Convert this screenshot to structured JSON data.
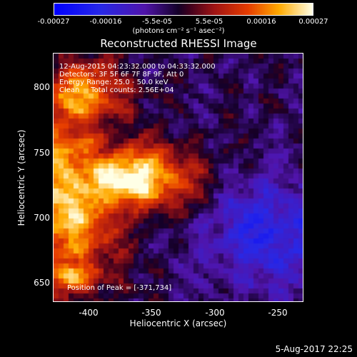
{
  "colorbar": {
    "ticks": [
      "-0.00027",
      "-0.00016",
      "-5.5e-05",
      "5.5e-05",
      "0.00016",
      "0.00027"
    ],
    "tick_values": [
      -0.00027,
      -0.00016,
      -5.5e-05,
      5.5e-05,
      0.00016,
      0.00027
    ],
    "unit_label": "(photons cm⁻² s⁻¹ asec⁻²)"
  },
  "chart_data": {
    "type": "heatmap",
    "title": "Reconstructed RHESSI Image",
    "xlabel": "Heliocentric X (arcsec)",
    "ylabel": "Heliocentric Y (arcsec)",
    "xlim": [
      -428,
      -232
    ],
    "ylim": [
      637,
      832
    ],
    "xticks": [
      -400,
      -350,
      -300,
      -250
    ],
    "yticks": [
      650,
      700,
      750,
      800
    ],
    "xtick_labels": [
      "-400",
      "-350",
      "-300",
      "-250"
    ],
    "ytick_labels": [
      "650",
      "700",
      "750",
      "800"
    ],
    "peak": [
      -371,
      734
    ],
    "colorbar_range": [
      -0.00027,
      0.00027
    ]
  },
  "annotations": {
    "time_range": "12-Aug-2015 04:23:32.000 to 04:33:32.000",
    "detectors": "Detectors: 3F 5F 6F 7F 8F 9F, Att 0",
    "energy": "Energy Range: 25.0 - 50.0 keV",
    "clean": "Clean     Total counts: 2.56E+04",
    "peak_position": "Position of Peak = [-371,734]"
  },
  "footer": {
    "timestamp": "5-Aug-2017 22:25"
  }
}
